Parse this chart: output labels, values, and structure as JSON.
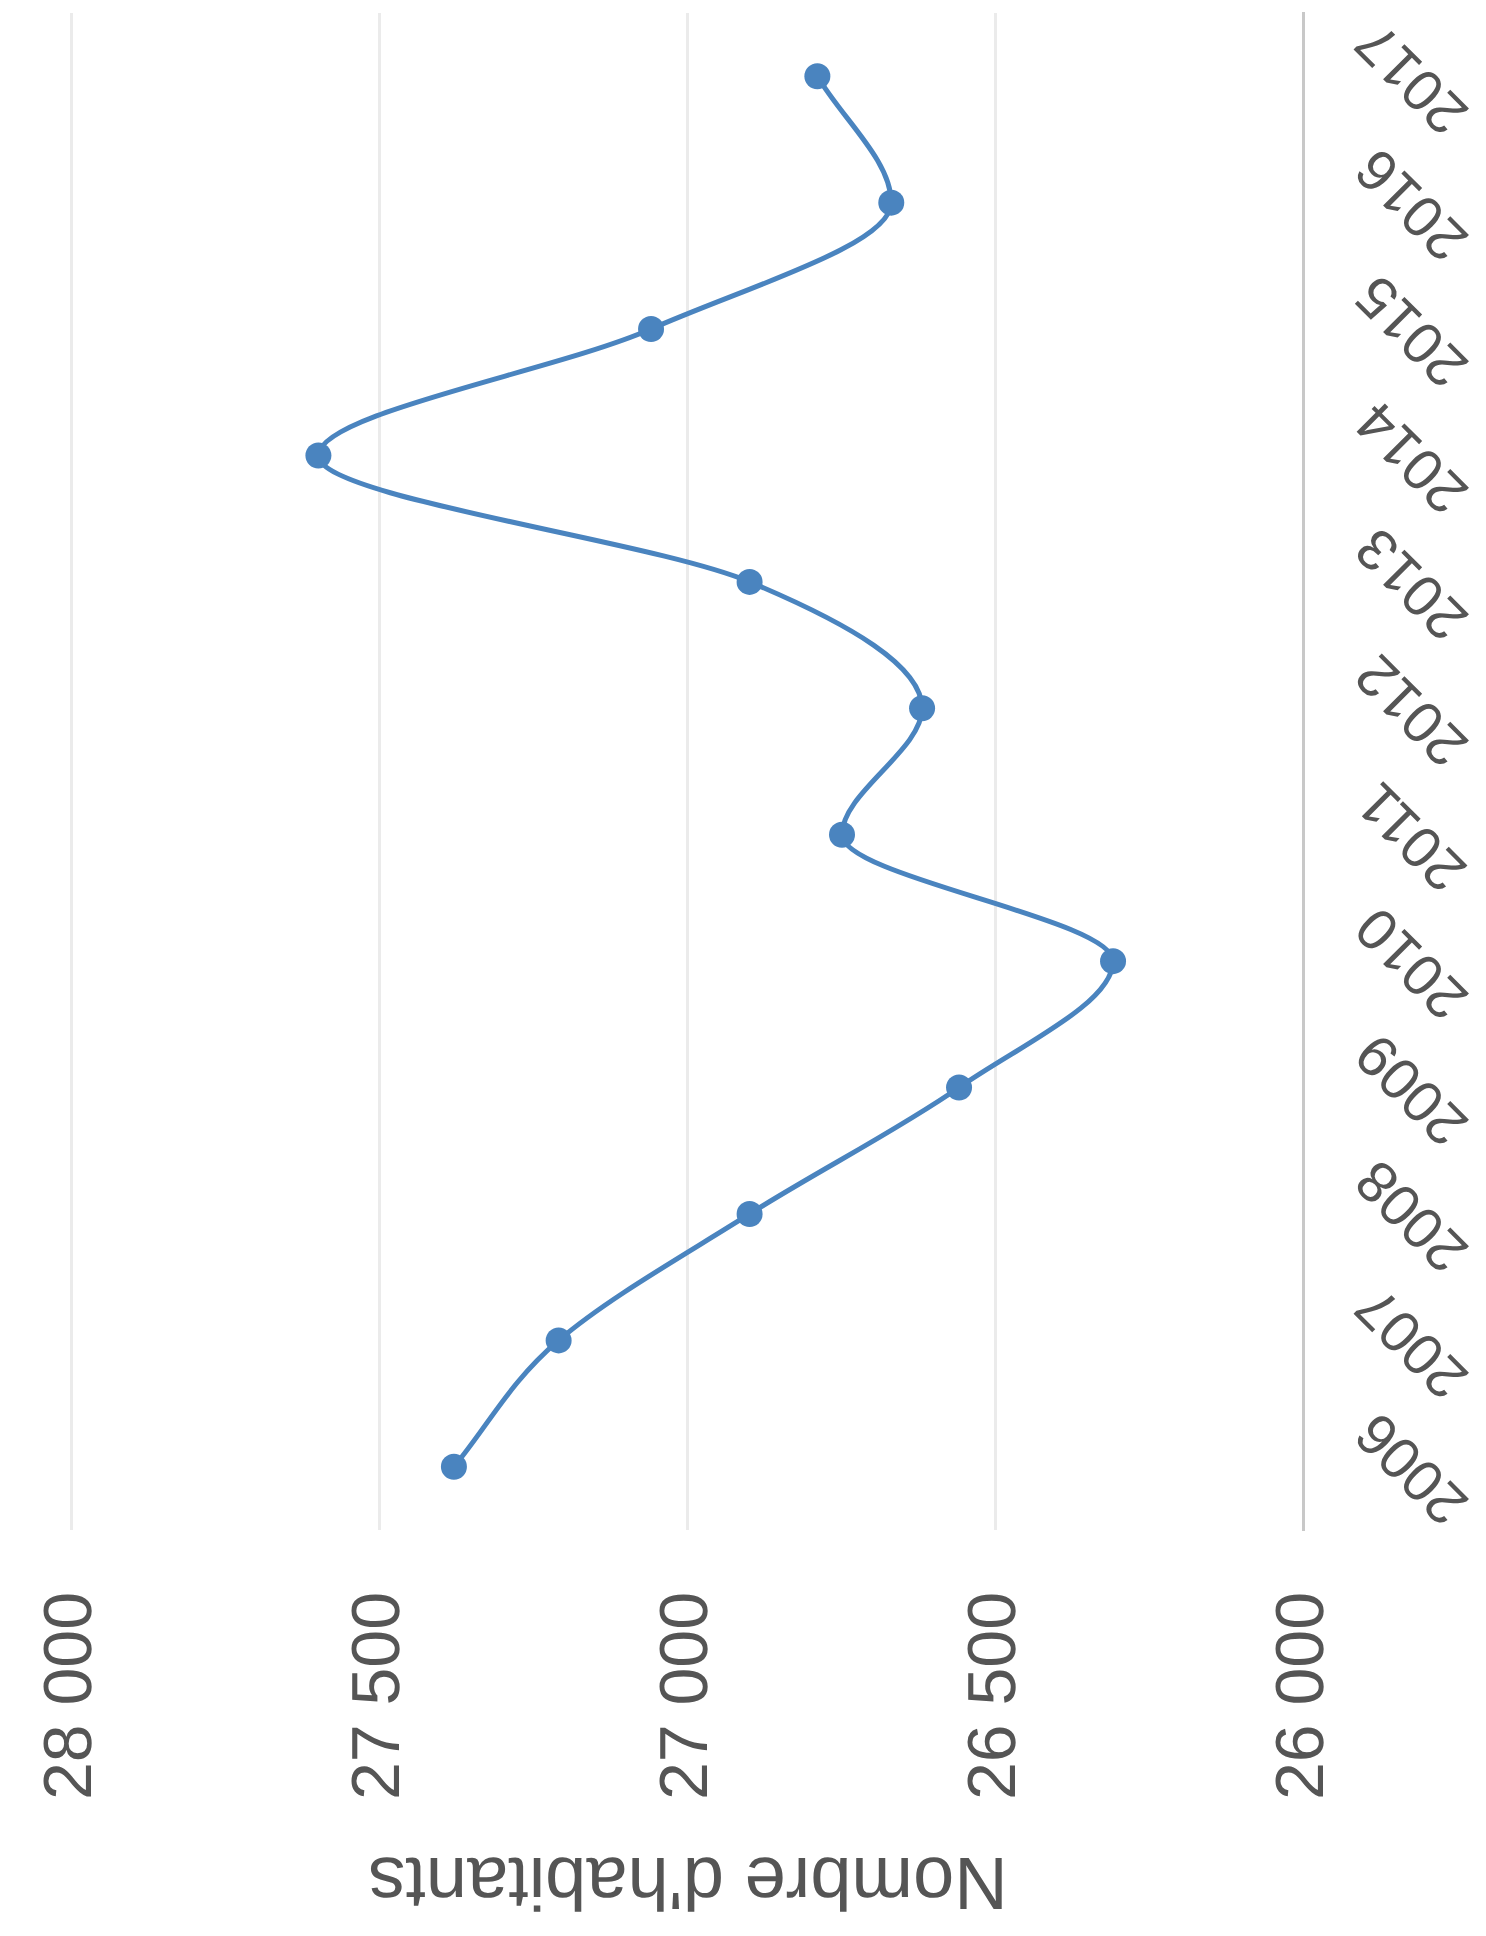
{
  "chart_data": {
    "type": "line",
    "xlabel": "Nombre d'habitants",
    "series": [
      {
        "color": "#4a84bf",
        "x": [
          27380,
          27210,
          26900,
          26560,
          26310,
          26750,
          26620,
          26900,
          27600,
          27060,
          26670,
          26790
        ],
        "values": [
          2006,
          2007,
          2008,
          2009,
          2010,
          2011,
          2012,
          2013,
          2014,
          2015,
          2016,
          2017
        ]
      }
    ],
    "xlim": [
      28000,
      26000
    ],
    "xticks": [
      {
        "value": 28000,
        "label": "28 000"
      },
      {
        "value": 27500,
        "label": "27 500"
      },
      {
        "value": 27000,
        "label": "27 000"
      },
      {
        "value": 26500,
        "label": "26 500"
      },
      {
        "value": 26000,
        "label": "26 000"
      }
    ],
    "ylim": [
      2005.5,
      2017.5
    ],
    "yticks": [
      2006,
      2007,
      2008,
      2009,
      2010,
      2011,
      2012,
      2013,
      2014,
      2015,
      2016,
      2017
    ],
    "grid": "x",
    "marker": "circle",
    "line_style": "solid"
  }
}
